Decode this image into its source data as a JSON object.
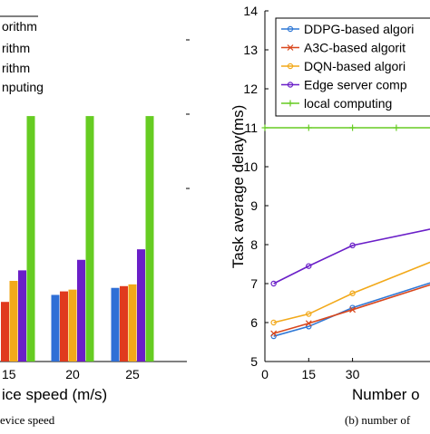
{
  "chart_data": [
    {
      "type": "bar",
      "panel": "left",
      "xlabel_visible": "ice speed (m/s)",
      "caption_visible": "evice speed",
      "categories": [
        "15",
        "20",
        "25"
      ],
      "legend_fragments": [
        "orithm",
        "rithm",
        "rithm",
        "nputing"
      ],
      "series": [
        {
          "name": "",
          "color": "#2f6fd6",
          "values": [
            null,
            5.9,
            6.1
          ]
        },
        {
          "name": "",
          "color": "#e03a1e",
          "values": [
            5.7,
            6.0,
            6.15
          ]
        },
        {
          "name": "",
          "color": "#f2a91a",
          "values": [
            6.3,
            6.05,
            6.2
          ]
        },
        {
          "name": "",
          "color": "#6a1fc8",
          "values": [
            6.6,
            6.9,
            7.2
          ]
        },
        {
          "name": "",
          "color": "#66cc22",
          "values": [
            11,
            11,
            11
          ]
        }
      ],
      "ylim": [
        4,
        14
      ]
    },
    {
      "type": "line",
      "panel": "right",
      "ylabel": "Task average delay(ms)",
      "xlabel_visible": "Number o",
      "caption_visible": "(b) number of",
      "ylim": [
        5,
        14
      ],
      "yticks": [
        "5",
        "6",
        "7",
        "8",
        "9",
        "10",
        "11",
        "12",
        "13",
        "14"
      ],
      "xticks": [
        "0",
        "15",
        "30"
      ],
      "legend_position": "top-right",
      "series": [
        {
          "name": "DDPG-based algori",
          "color": "#2f78d6",
          "marker": "circle",
          "x": [
            3,
            15,
            30,
            60
          ],
          "y": [
            5.65,
            5.9,
            6.38,
            7.1
          ]
        },
        {
          "name": "A3C-based algorit",
          "color": "#d9471c",
          "marker": "cross",
          "x": [
            3,
            15,
            30,
            60
          ],
          "y": [
            5.72,
            5.98,
            6.33,
            7.05
          ]
        },
        {
          "name": "DQN-based algori",
          "color": "#f2a91a",
          "marker": "circle",
          "x": [
            3,
            15,
            30,
            60
          ],
          "y": [
            6.0,
            6.22,
            6.75,
            7.65
          ]
        },
        {
          "name": "Edge server comp",
          "color": "#6a1fc8",
          "marker": "circle",
          "x": [
            3,
            15,
            30,
            60
          ],
          "y": [
            7.0,
            7.45,
            7.98,
            8.45
          ]
        },
        {
          "name": "local computing",
          "color": "#66cc22",
          "marker": "plus",
          "x": [
            0,
            15,
            30,
            45,
            60
          ],
          "y": [
            11,
            11,
            11,
            11,
            11
          ]
        }
      ]
    }
  ]
}
